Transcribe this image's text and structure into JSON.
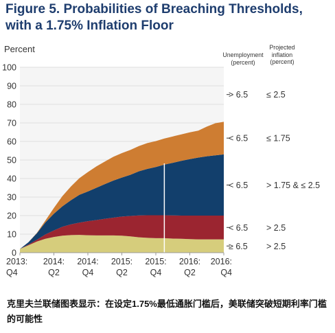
{
  "chart_data": {
    "type": "area",
    "title": "Figure 5. Probabilities of Breaching Thresholds, with a 1.75% Inflation Floor",
    "title_lines": [
      "Figure 5. Probabilities of Breaching Thresholds,",
      "with a 1.75% Inflation Floor"
    ],
    "ylabel": "Percent",
    "ylim": [
      0,
      100
    ],
    "yticks": [
      0,
      10,
      20,
      30,
      40,
      50,
      60,
      70,
      80,
      90,
      100
    ],
    "x": [
      0,
      0.5,
      1,
      1.5,
      2,
      2.5,
      3,
      3.5,
      4,
      4.5,
      5,
      5.5,
      6,
      6.5,
      7,
      7.5,
      8,
      8.5,
      9,
      9.5,
      10,
      10.5,
      11,
      11.5,
      12
    ],
    "x_ticks": [
      {
        "x": 0,
        "line1": "2013:",
        "line2": "Q4"
      },
      {
        "x": 2,
        "line1": "2014:",
        "line2": "Q2"
      },
      {
        "x": 4,
        "line1": "2014:",
        "line2": "Q4"
      },
      {
        "x": 6,
        "line1": "2015:",
        "line2": "Q2"
      },
      {
        "x": 8,
        "line1": "2015:",
        "line2": "Q4"
      },
      {
        "x": 10,
        "line1": "2016:",
        "line2": "Q2"
      },
      {
        "x": 12,
        "line1": "2016:",
        "line2": "Q4"
      }
    ],
    "column_headers": {
      "unemployment": [
        "Unemployment",
        "(percent)"
      ],
      "inflation": [
        "Projected",
        "inflation",
        "(percent)"
      ]
    },
    "series": [
      {
        "unemployment": "≥ 6.5",
        "inflation": "> 2.5",
        "color": "#d6cd7c",
        "values": [
          2,
          4,
          6,
          7.5,
          8.5,
          9.2,
          9.5,
          9.6,
          9.4,
          9.3,
          9.3,
          9.3,
          9.2,
          8.8,
          8.3,
          8,
          7.8,
          7.8,
          7.6,
          7.5,
          7.3,
          7.2,
          7.2,
          7.2,
          7.2
        ]
      },
      {
        "unemployment": "< 6.5",
        "inflation": "> 2.5",
        "color": "#9b2530",
        "values": [
          0,
          0.4,
          1,
          2.3,
          3.5,
          4.8,
          5.8,
          6.6,
          7.6,
          8.3,
          9,
          9.6,
          10.3,
          11,
          11.8,
          12.2,
          12.4,
          12.4,
          12.5,
          12.5,
          12.7,
          12.8,
          12.8,
          12.8,
          12.8
        ]
      },
      {
        "unemployment": "< 6.5",
        "inflation": "> 1.75 & ≤ 2.5",
        "color": "#123f6c",
        "values": [
          0,
          1.2,
          3.5,
          6.5,
          9,
          11,
          13,
          15,
          16,
          17.4,
          18.7,
          20,
          21,
          22.2,
          23.8,
          25,
          26,
          27.3,
          28.4,
          29.5,
          30.5,
          31.3,
          32,
          32.5,
          33
        ]
      },
      {
        "unemployment": "< 6.5",
        "inflation": "≤ 1.75",
        "color": "#ce7d32",
        "values": [
          0,
          0,
          0.2,
          1,
          3.1,
          5.5,
          7.4,
          9,
          10.5,
          11.5,
          12.2,
          12.8,
          13.2,
          13.4,
          13.6,
          13.9,
          14,
          14.1,
          14.2,
          14.3,
          14.4,
          14.5,
          16,
          17.3,
          17.6
        ]
      },
      {
        "unemployment": "> 6.5",
        "inflation": "≤ 2.5",
        "color": "#f6f6f6",
        "values": null
      }
    ],
    "marker_line_x": 8.5,
    "caption": "克里夫兰联储图表显示：在设定1.75%最低通胀门槛后，美联储突破短期利率门槛的可能性"
  }
}
